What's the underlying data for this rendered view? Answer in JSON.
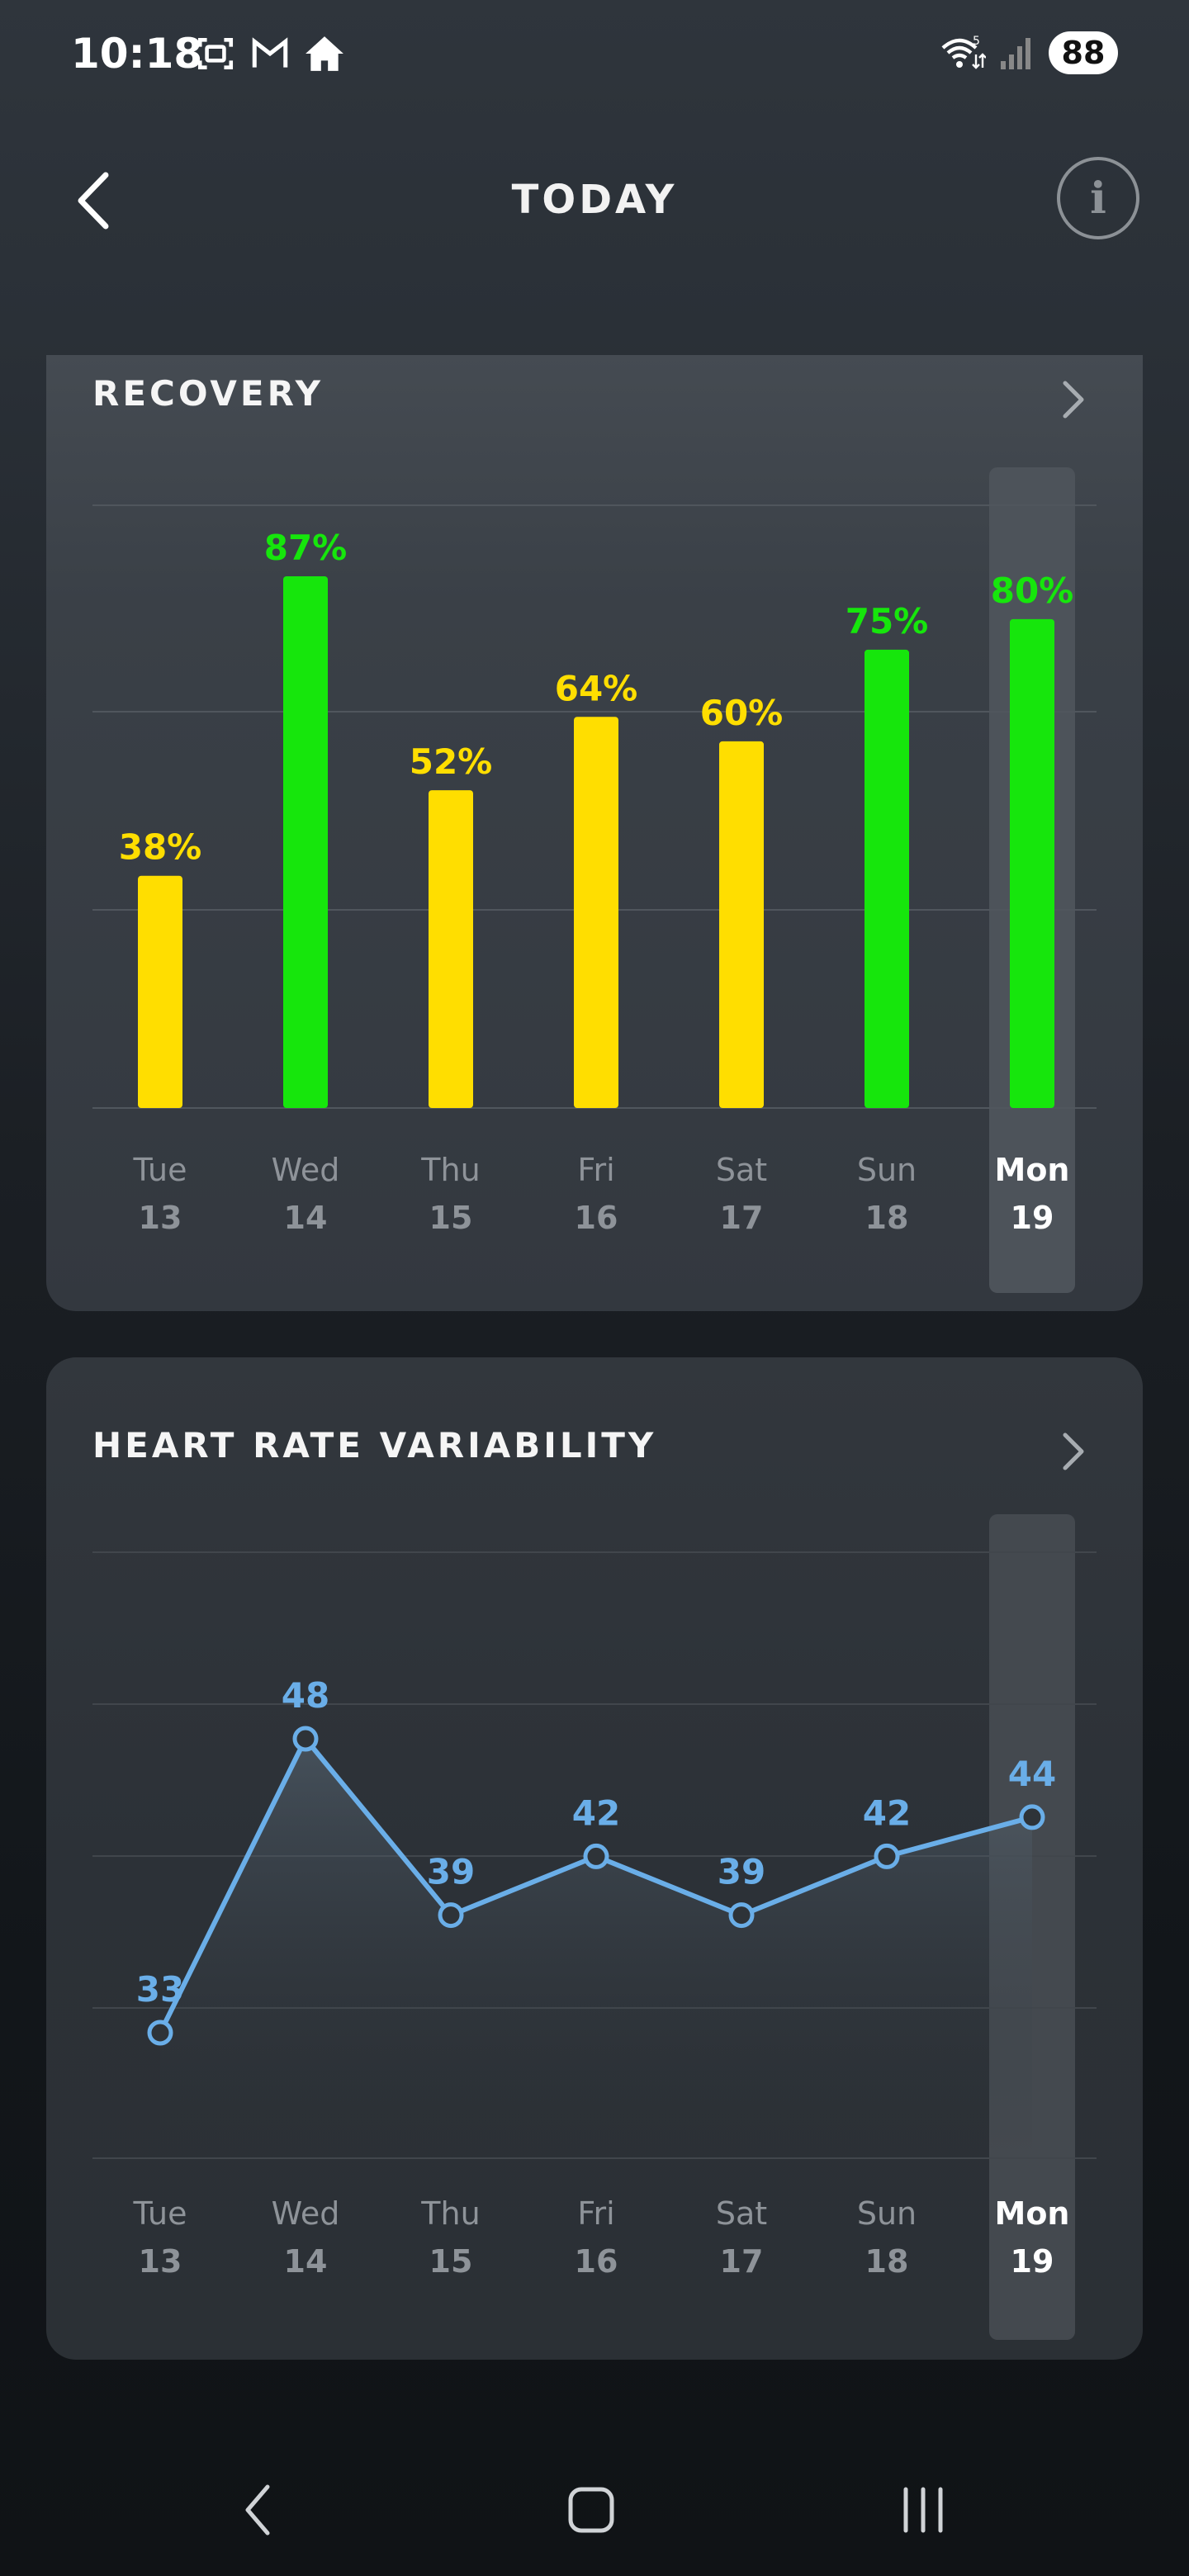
{
  "status": {
    "time": "10:18",
    "battery": "88",
    "network_badge": "5"
  },
  "header": {
    "title": "TODAY",
    "back_icon": "chevron-left-icon",
    "info_icon": "info-icon"
  },
  "colors": {
    "green": "#16e60c",
    "yellow": "#ffde00",
    "blue": "#6aaee8",
    "highlight": "#4a5057"
  },
  "recovery": {
    "title": "RECOVERY",
    "chart_data": {
      "type": "bar",
      "categories": [
        {
          "day": "Tue",
          "date": "13"
        },
        {
          "day": "Wed",
          "date": "14"
        },
        {
          "day": "Thu",
          "date": "15"
        },
        {
          "day": "Fri",
          "date": "16"
        },
        {
          "day": "Sat",
          "date": "17"
        },
        {
          "day": "Sun",
          "date": "18"
        },
        {
          "day": "Mon",
          "date": "19"
        }
      ],
      "values": [
        38,
        87,
        52,
        64,
        60,
        75,
        80
      ],
      "labels": [
        "38%",
        "87%",
        "52%",
        "64%",
        "60%",
        "75%",
        "80%"
      ],
      "bar_colors": [
        "#ffde00",
        "#16e60c",
        "#ffde00",
        "#ffde00",
        "#ffde00",
        "#16e60c",
        "#16e60c"
      ],
      "ylim": [
        0,
        100
      ],
      "grid": true,
      "highlighted_index": 6
    }
  },
  "hrv": {
    "title": "HEART RATE VARIABILITY",
    "chart_data": {
      "type": "line",
      "categories": [
        {
          "day": "Tue",
          "date": "13"
        },
        {
          "day": "Wed",
          "date": "14"
        },
        {
          "day": "Thu",
          "date": "15"
        },
        {
          "day": "Fri",
          "date": "16"
        },
        {
          "day": "Sat",
          "date": "17"
        },
        {
          "day": "Sun",
          "date": "18"
        },
        {
          "day": "Mon",
          "date": "19"
        }
      ],
      "values": [
        33,
        48,
        39,
        42,
        39,
        42,
        44
      ],
      "labels": [
        "33",
        "48",
        "39",
        "42",
        "39",
        "42",
        "44"
      ],
      "ylim": [
        20,
        52
      ],
      "grid": true,
      "highlighted_index": 6
    }
  },
  "nav": {
    "back": "nav-back-icon",
    "home": "nav-home-icon",
    "recents": "nav-recents-icon"
  }
}
